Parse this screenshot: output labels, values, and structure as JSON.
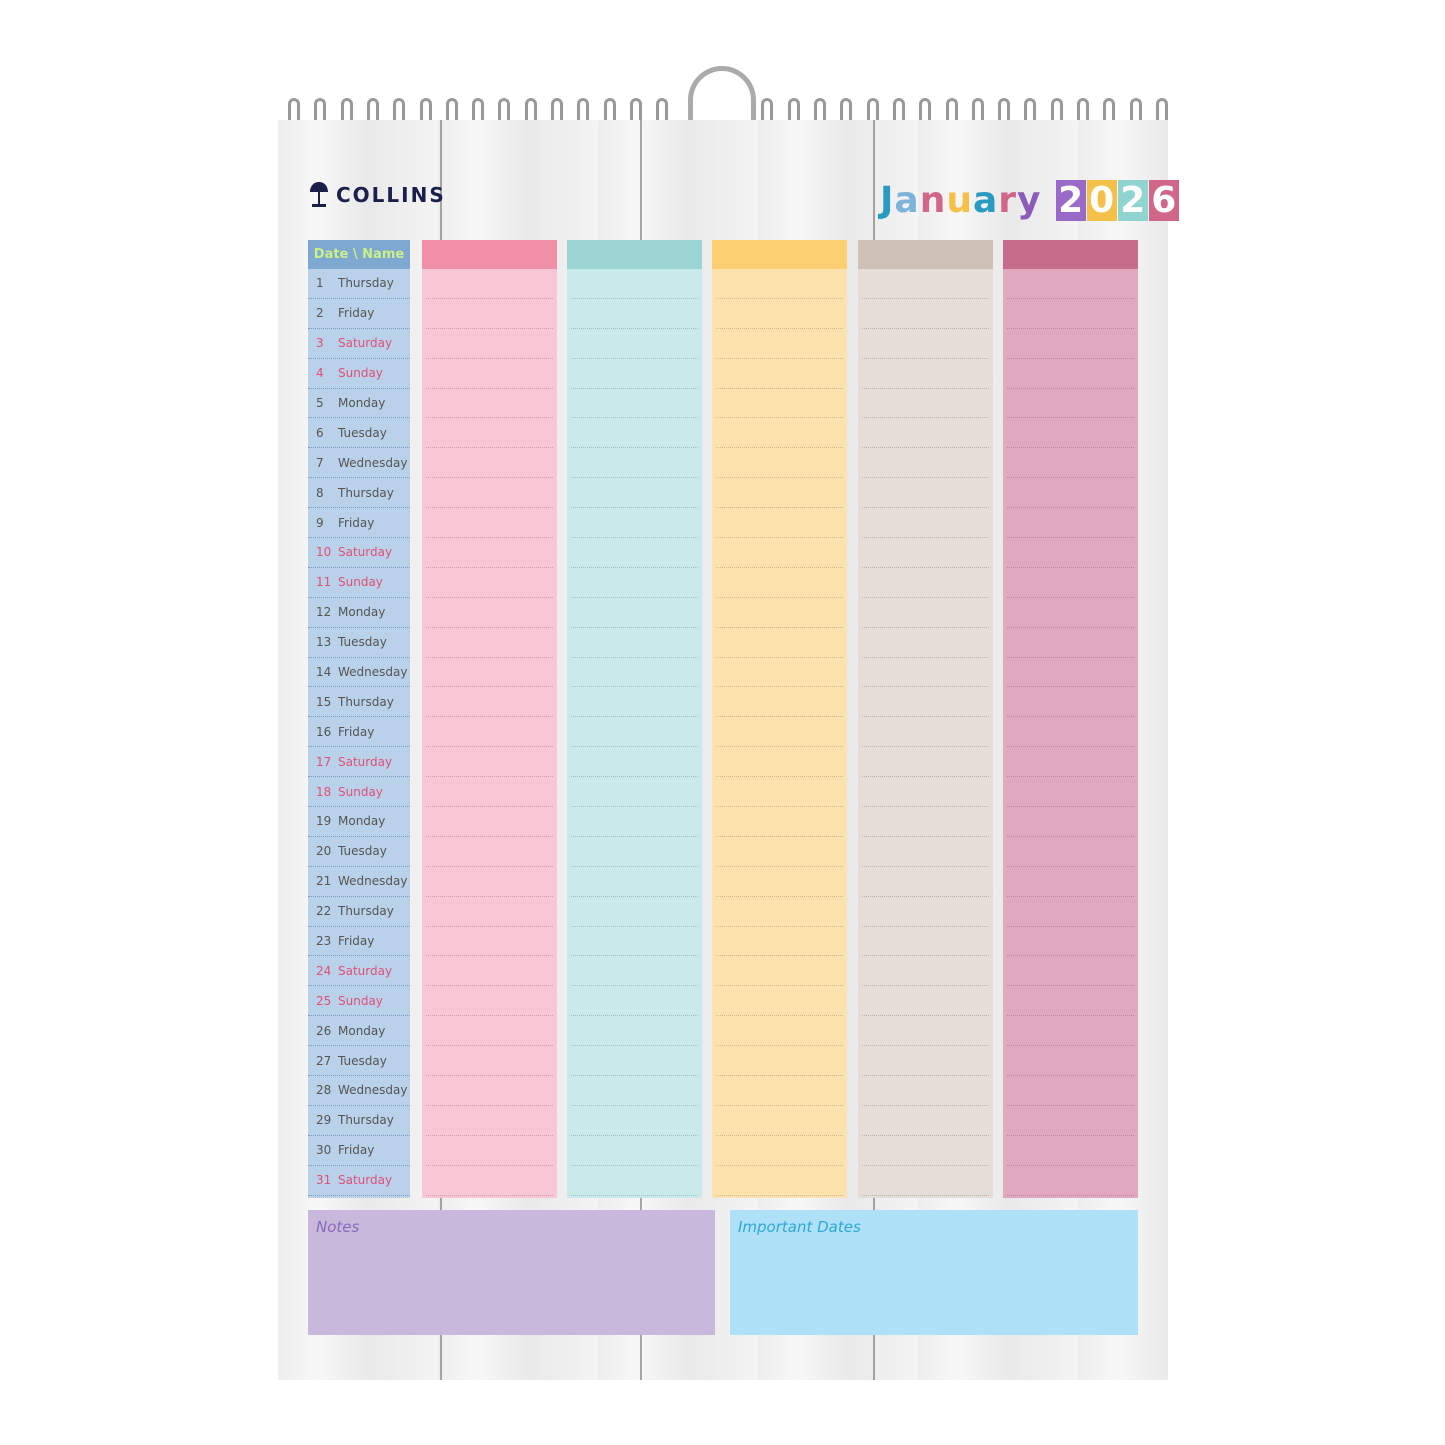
{
  "brand": "COLLINS",
  "title": {
    "month": "January",
    "year": "2026"
  },
  "date_header": "Date \\ Name",
  "days": [
    {
      "n": "1",
      "d": "Thursday"
    },
    {
      "n": "2",
      "d": "Friday"
    },
    {
      "n": "3",
      "d": "Saturday",
      "we": true
    },
    {
      "n": "4",
      "d": "Sunday",
      "we": true
    },
    {
      "n": "5",
      "d": "Monday"
    },
    {
      "n": "6",
      "d": "Tuesday"
    },
    {
      "n": "7",
      "d": "Wednesday"
    },
    {
      "n": "8",
      "d": "Thursday"
    },
    {
      "n": "9",
      "d": "Friday"
    },
    {
      "n": "10",
      "d": "Saturday",
      "we": true
    },
    {
      "n": "11",
      "d": "Sunday",
      "we": true
    },
    {
      "n": "12",
      "d": "Monday"
    },
    {
      "n": "13",
      "d": "Tuesday"
    },
    {
      "n": "14",
      "d": "Wednesday"
    },
    {
      "n": "15",
      "d": "Thursday"
    },
    {
      "n": "16",
      "d": "Friday"
    },
    {
      "n": "17",
      "d": "Saturday",
      "we": true
    },
    {
      "n": "18",
      "d": "Sunday",
      "we": true
    },
    {
      "n": "19",
      "d": "Monday"
    },
    {
      "n": "20",
      "d": "Tuesday"
    },
    {
      "n": "21",
      "d": "Wednesday"
    },
    {
      "n": "22",
      "d": "Thursday"
    },
    {
      "n": "23",
      "d": "Friday"
    },
    {
      "n": "24",
      "d": "Saturday",
      "we": true
    },
    {
      "n": "25",
      "d": "Sunday",
      "we": true
    },
    {
      "n": "26",
      "d": "Monday"
    },
    {
      "n": "27",
      "d": "Tuesday"
    },
    {
      "n": "28",
      "d": "Wednesday"
    },
    {
      "n": "29",
      "d": "Thursday"
    },
    {
      "n": "30",
      "d": "Friday"
    },
    {
      "n": "31",
      "d": "Saturday",
      "we": true
    }
  ],
  "name_columns": [
    {
      "header": "#f08fa8",
      "body": "#f8c6d4"
    },
    {
      "header": "#9ad4d3",
      "body": "#c9eaea"
    },
    {
      "header": "#fcd072",
      "body": "#fde2ae"
    },
    {
      "header": "#cdc1b7",
      "body": "#e5ddd6"
    },
    {
      "header": "#c76d8c",
      "body": "#e0a9bd"
    }
  ],
  "notes": {
    "label": "Notes",
    "color": "#c7b8dc",
    "text_color": "#8a6ab8"
  },
  "important": {
    "label": "Important Dates",
    "color": "#aee0f7",
    "text_color": "#2fa8d8"
  },
  "title_colors": [
    "#2a9bc0",
    "#7db3d8",
    "#d06688",
    "#f4c04a",
    "#2a9bc0",
    "#d06688",
    "#8a5cb8"
  ],
  "year_colors": [
    "#9a6ac8",
    "#f4c04a",
    "#8fd4cf",
    "#d06688"
  ]
}
